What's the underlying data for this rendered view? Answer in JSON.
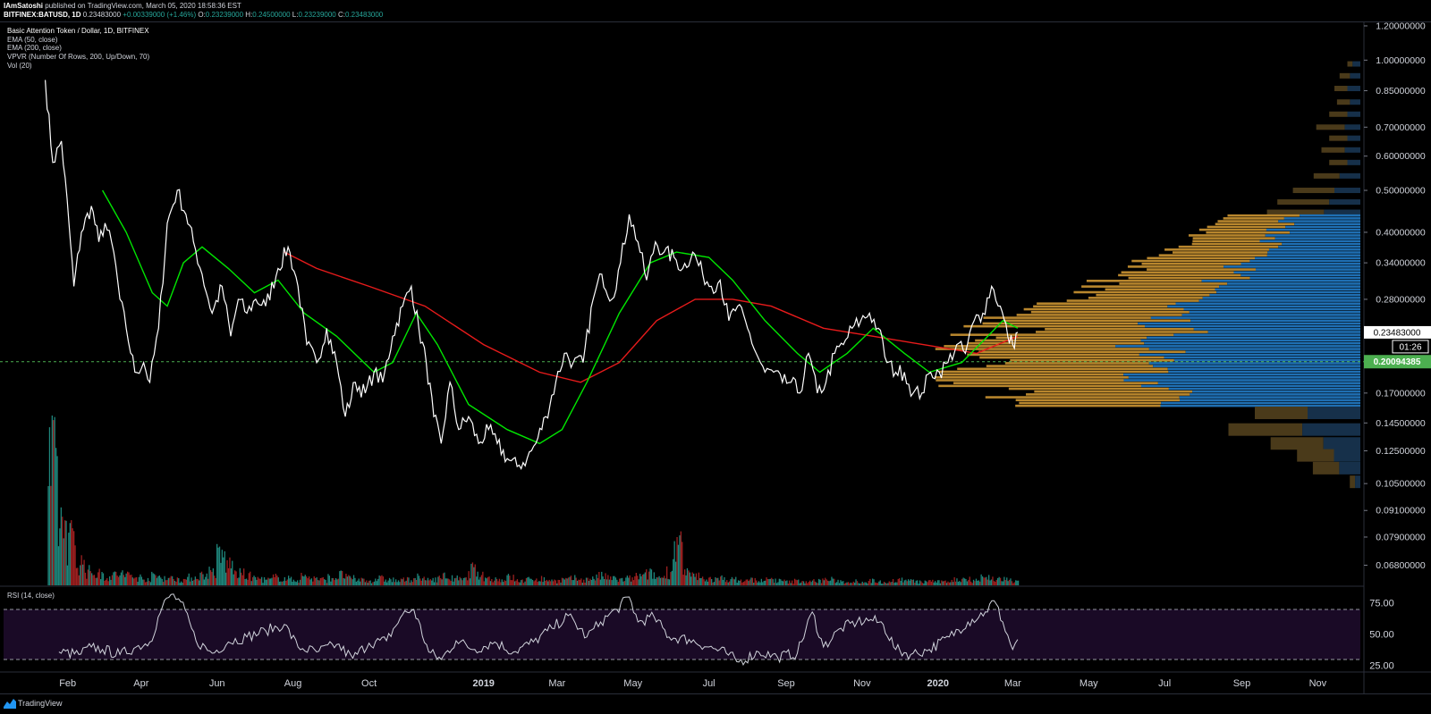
{
  "header": {
    "author": "IAmSatoshi",
    "published": "published on TradingView.com, March 05, 2020 18:58:36 EST",
    "symbol": "BITFINEX:BATUSD, 1D",
    "last": "0.23483000",
    "change": "+0.00339000 (+1.46%)",
    "o_label": "O:",
    "o_val": "0.23239000",
    "h_label": "H:",
    "h_val": "0.24500000",
    "l_label": "L:",
    "l_val": "0.23239000",
    "c_label": "C:",
    "c_val": "0.23483000"
  },
  "legend": {
    "main": "Basic Attention Token / Dollar, 1D, BITFINEX",
    "ema50": "EMA (50, close)",
    "ema200": "EMA (200, close)",
    "vpvr": "VPVR (Number Of Rows, 200, Up/Down, 70)",
    "vol": "Vol (20)"
  },
  "rsi_label": "RSI (14, close)",
  "footer": {
    "brand": "TradingView"
  },
  "colors": {
    "price": "#ffffff",
    "ema50": "#00e600",
    "ema200": "#e81b1b",
    "vol_up": "#26a69a",
    "vol_down": "#c62828",
    "vpvr_up_va": "#b8862d",
    "vpvr_down_va": "#1f6fb3",
    "vpvr_up": "#4a3a1a",
    "vpvr_down": "#16304a",
    "rsi_bg": "#1a0a26",
    "current_price": "#ffffff",
    "poc": "#4caf50"
  },
  "chart_data": {
    "type": "line",
    "symbol": "BATUSD",
    "scale": "log",
    "x_ticks": [
      "Feb",
      "Apr",
      "Jun",
      "Aug",
      "Oct",
      "2019",
      "Mar",
      "May",
      "Jul",
      "Sep",
      "Nov",
      "2020",
      "Mar",
      "May",
      "Jul",
      "Sep",
      "Nov"
    ],
    "y_ticks": [
      "1.20000000",
      "1.00000000",
      "0.85000000",
      "0.70000000",
      "0.60000000",
      "0.50000000",
      "0.40000000",
      "0.34000000",
      "0.28000000",
      "0.17000000",
      "0.14500000",
      "0.12500000",
      "0.10500000",
      "0.09100000",
      "0.07900000",
      "0.06800000"
    ],
    "ylim": [
      0.064,
      1.21
    ],
    "current_price_label": "0.23483000",
    "countdown": "01:26",
    "poc_label": "0.20094385",
    "poc": 0.2009,
    "price_series": {
      "name": "BATUSD",
      "points": [
        [
          "2018-01-14",
          0.9
        ],
        [
          "2018-01-20",
          0.58
        ],
        [
          "2018-01-27",
          0.65
        ],
        [
          "2018-02-02",
          0.42
        ],
        [
          "2018-02-06",
          0.3
        ],
        [
          "2018-02-12",
          0.4
        ],
        [
          "2018-02-20",
          0.46
        ],
        [
          "2018-02-26",
          0.38
        ],
        [
          "2018-03-03",
          0.42
        ],
        [
          "2018-03-10",
          0.36
        ],
        [
          "2018-03-15",
          0.28
        ],
        [
          "2018-03-20",
          0.24
        ],
        [
          "2018-03-27",
          0.19
        ],
        [
          "2018-04-03",
          0.2
        ],
        [
          "2018-04-08",
          0.18
        ],
        [
          "2018-04-15",
          0.24
        ],
        [
          "2018-04-22",
          0.42
        ],
        [
          "2018-04-30",
          0.5
        ],
        [
          "2018-05-07",
          0.44
        ],
        [
          "2018-05-13",
          0.38
        ],
        [
          "2018-05-20",
          0.32
        ],
        [
          "2018-05-28",
          0.26
        ],
        [
          "2018-06-05",
          0.3
        ],
        [
          "2018-06-12",
          0.23
        ],
        [
          "2018-06-18",
          0.28
        ],
        [
          "2018-06-25",
          0.26
        ],
        [
          "2018-07-02",
          0.28
        ],
        [
          "2018-07-10",
          0.27
        ],
        [
          "2018-07-20",
          0.33
        ],
        [
          "2018-07-28",
          0.37
        ],
        [
          "2018-08-05",
          0.3
        ],
        [
          "2018-08-12",
          0.22
        ],
        [
          "2018-08-20",
          0.2
        ],
        [
          "2018-08-28",
          0.24
        ],
        [
          "2018-09-05",
          0.2
        ],
        [
          "2018-09-12",
          0.15
        ],
        [
          "2018-09-20",
          0.18
        ],
        [
          "2018-09-28",
          0.17
        ],
        [
          "2018-10-05",
          0.19
        ],
        [
          "2018-10-12",
          0.18
        ],
        [
          "2018-10-20",
          0.23
        ],
        [
          "2018-10-28",
          0.27
        ],
        [
          "2018-11-04",
          0.3
        ],
        [
          "2018-11-10",
          0.24
        ],
        [
          "2018-11-16",
          0.2
        ],
        [
          "2018-11-22",
          0.15
        ],
        [
          "2018-11-28",
          0.13
        ],
        [
          "2018-12-05",
          0.18
        ],
        [
          "2018-12-12",
          0.14
        ],
        [
          "2018-12-20",
          0.15
        ],
        [
          "2018-12-28",
          0.13
        ],
        [
          "2019-01-05",
          0.14
        ],
        [
          "2019-01-12",
          0.13
        ],
        [
          "2019-01-20",
          0.12
        ],
        [
          "2019-01-28",
          0.115
        ],
        [
          "2019-02-05",
          0.12
        ],
        [
          "2019-02-12",
          0.13
        ],
        [
          "2019-02-20",
          0.15
        ],
        [
          "2019-02-28",
          0.18
        ],
        [
          "2019-03-07",
          0.21
        ],
        [
          "2019-03-14",
          0.2
        ],
        [
          "2019-03-22",
          0.2
        ],
        [
          "2019-03-30",
          0.28
        ],
        [
          "2019-04-06",
          0.32
        ],
        [
          "2019-04-14",
          0.28
        ],
        [
          "2019-04-21",
          0.34
        ],
        [
          "2019-04-28",
          0.44
        ],
        [
          "2019-05-05",
          0.38
        ],
        [
          "2019-05-12",
          0.31
        ],
        [
          "2019-05-19",
          0.38
        ],
        [
          "2019-05-26",
          0.36
        ],
        [
          "2019-06-03",
          0.35
        ],
        [
          "2019-06-10",
          0.33
        ],
        [
          "2019-06-18",
          0.36
        ],
        [
          "2019-06-26",
          0.32
        ],
        [
          "2019-07-03",
          0.3
        ],
        [
          "2019-07-10",
          0.31
        ],
        [
          "2019-07-17",
          0.25
        ],
        [
          "2019-07-24",
          0.27
        ],
        [
          "2019-08-01",
          0.24
        ],
        [
          "2019-08-08",
          0.21
        ],
        [
          "2019-08-15",
          0.19
        ],
        [
          "2019-08-22",
          0.19
        ],
        [
          "2019-08-29",
          0.18
        ],
        [
          "2019-09-05",
          0.18
        ],
        [
          "2019-09-12",
          0.17
        ],
        [
          "2019-09-19",
          0.21
        ],
        [
          "2019-09-26",
          0.17
        ],
        [
          "2019-10-03",
          0.18
        ],
        [
          "2019-10-10",
          0.21
        ],
        [
          "2019-10-17",
          0.22
        ],
        [
          "2019-10-24",
          0.24
        ],
        [
          "2019-10-31",
          0.25
        ],
        [
          "2019-11-07",
          0.26
        ],
        [
          "2019-11-14",
          0.24
        ],
        [
          "2019-11-21",
          0.2
        ],
        [
          "2019-11-28",
          0.19
        ],
        [
          "2019-12-05",
          0.19
        ],
        [
          "2019-12-12",
          0.17
        ],
        [
          "2019-12-19",
          0.17
        ],
        [
          "2019-12-26",
          0.19
        ],
        [
          "2020-01-02",
          0.19
        ],
        [
          "2020-01-09",
          0.2
        ],
        [
          "2020-01-16",
          0.22
        ],
        [
          "2020-01-23",
          0.21
        ],
        [
          "2020-01-30",
          0.25
        ],
        [
          "2020-02-06",
          0.26
        ],
        [
          "2020-02-13",
          0.3
        ],
        [
          "2020-02-20",
          0.27
        ],
        [
          "2020-02-26",
          0.23
        ],
        [
          "2020-03-01",
          0.22
        ],
        [
          "2020-03-05",
          0.235
        ]
      ]
    },
    "ema50": {
      "name": "EMA (50, close)",
      "points": [
        [
          "2018-03-01",
          0.5
        ],
        [
          "2018-03-20",
          0.4
        ],
        [
          "2018-04-10",
          0.29
        ],
        [
          "2018-04-22",
          0.27
        ],
        [
          "2018-05-05",
          0.34
        ],
        [
          "2018-05-20",
          0.37
        ],
        [
          "2018-06-10",
          0.33
        ],
        [
          "2018-07-01",
          0.29
        ],
        [
          "2018-07-20",
          0.31
        ],
        [
          "2018-08-10",
          0.26
        ],
        [
          "2018-09-05",
          0.23
        ],
        [
          "2018-10-05",
          0.19
        ],
        [
          "2018-10-20",
          0.2
        ],
        [
          "2018-11-08",
          0.26
        ],
        [
          "2018-11-25",
          0.22
        ],
        [
          "2018-12-20",
          0.16
        ],
        [
          "2019-01-20",
          0.14
        ],
        [
          "2019-02-15",
          0.13
        ],
        [
          "2019-03-05",
          0.14
        ],
        [
          "2019-03-25",
          0.18
        ],
        [
          "2019-04-20",
          0.26
        ],
        [
          "2019-05-15",
          0.34
        ],
        [
          "2019-06-05",
          0.36
        ],
        [
          "2019-07-01",
          0.35
        ],
        [
          "2019-07-20",
          0.31
        ],
        [
          "2019-08-15",
          0.25
        ],
        [
          "2019-09-10",
          0.21
        ],
        [
          "2019-09-28",
          0.19
        ],
        [
          "2019-10-20",
          0.21
        ],
        [
          "2019-11-10",
          0.24
        ],
        [
          "2019-12-05",
          0.21
        ],
        [
          "2019-12-25",
          0.19
        ],
        [
          "2020-01-20",
          0.2
        ],
        [
          "2020-02-10",
          0.23
        ],
        [
          "2020-02-22",
          0.25
        ],
        [
          "2020-03-05",
          0.24
        ]
      ]
    },
    "ema200": {
      "name": "EMA (200, close)",
      "points": [
        [
          "2018-07-25",
          0.36
        ],
        [
          "2018-08-20",
          0.33
        ],
        [
          "2018-10-01",
          0.3
        ],
        [
          "2018-11-15",
          0.27
        ],
        [
          "2019-01-01",
          0.22
        ],
        [
          "2019-02-15",
          0.19
        ],
        [
          "2019-03-20",
          0.18
        ],
        [
          "2019-04-20",
          0.2
        ],
        [
          "2019-05-20",
          0.25
        ],
        [
          "2019-06-20",
          0.28
        ],
        [
          "2019-07-20",
          0.28
        ],
        [
          "2019-08-20",
          0.27
        ],
        [
          "2019-10-01",
          0.24
        ],
        [
          "2019-11-10",
          0.23
        ],
        [
          "2019-12-20",
          0.22
        ],
        [
          "2020-02-01",
          0.21
        ],
        [
          "2020-03-05",
          0.23
        ]
      ]
    },
    "volume": {
      "name": "Vol (20)",
      "unit": "relative",
      "bars": [
        1.0,
        0.55,
        0.4,
        0.2,
        0.12,
        0.1,
        0.08,
        0.1,
        0.09,
        0.07,
        0.06,
        0.08,
        0.07,
        0.06,
        0.05,
        0.07,
        0.09,
        0.12,
        0.25,
        0.18,
        0.1,
        0.08,
        0.06,
        0.05,
        0.07,
        0.06,
        0.05,
        0.08,
        0.06,
        0.05,
        0.07,
        0.09,
        0.06,
        0.05,
        0.04,
        0.06,
        0.05,
        0.04,
        0.05,
        0.07,
        0.05,
        0.06,
        0.08,
        0.06,
        0.05,
        0.14,
        0.08,
        0.06,
        0.05,
        0.07,
        0.04,
        0.05,
        0.06,
        0.05,
        0.04,
        0.05,
        0.06,
        0.05,
        0.07,
        0.08,
        0.06,
        0.05,
        0.06,
        0.08,
        0.1,
        0.07,
        0.12,
        0.35,
        0.1,
        0.08,
        0.06,
        0.05,
        0.06,
        0.05,
        0.04,
        0.05,
        0.04,
        0.05,
        0.04,
        0.03,
        0.04,
        0.03,
        0.04,
        0.05,
        0.04,
        0.03,
        0.04,
        0.03,
        0.04,
        0.03,
        0.04,
        0.05,
        0.04,
        0.03,
        0.04,
        0.03,
        0.04,
        0.05,
        0.06,
        0.05,
        0.07,
        0.06,
        0.05,
        0.04
      ]
    },
    "rsi": {
      "name": "RSI (14, close)",
      "y_ticks": [
        "75.00",
        "50.00",
        "25.00"
      ],
      "levels": [
        70,
        30
      ],
      "ylim": [
        20,
        85
      ],
      "points": [
        [
          "2018-01-25",
          36
        ],
        [
          "2018-02-10",
          34
        ],
        [
          "2018-02-20",
          40
        ],
        [
          "2018-03-01",
          38
        ],
        [
          "2018-03-15",
          34
        ],
        [
          "2018-03-28",
          40
        ],
        [
          "2018-04-08",
          44
        ],
        [
          "2018-04-18",
          72
        ],
        [
          "2018-04-25",
          82
        ],
        [
          "2018-05-03",
          76
        ],
        [
          "2018-05-15",
          45
        ],
        [
          "2018-05-28",
          35
        ],
        [
          "2018-06-10",
          44
        ],
        [
          "2018-06-25",
          48
        ],
        [
          "2018-07-10",
          53
        ],
        [
          "2018-07-25",
          58
        ],
        [
          "2018-08-05",
          40
        ],
        [
          "2018-08-20",
          36
        ],
        [
          "2018-09-05",
          42
        ],
        [
          "2018-09-18",
          31
        ],
        [
          "2018-10-01",
          43
        ],
        [
          "2018-10-15",
          45
        ],
        [
          "2018-10-28",
          66
        ],
        [
          "2018-11-06",
          70
        ],
        [
          "2018-11-18",
          36
        ],
        [
          "2018-11-28",
          30
        ],
        [
          "2018-12-10",
          45
        ],
        [
          "2018-12-25",
          38
        ],
        [
          "2019-01-10",
          44
        ],
        [
          "2019-01-25",
          36
        ],
        [
          "2019-02-10",
          44
        ],
        [
          "2019-02-25",
          55
        ],
        [
          "2019-03-10",
          65
        ],
        [
          "2019-03-25",
          48
        ],
        [
          "2019-04-05",
          60
        ],
        [
          "2019-04-18",
          70
        ],
        [
          "2019-04-28",
          80
        ],
        [
          "2019-05-05",
          60
        ],
        [
          "2019-05-18",
          64
        ],
        [
          "2019-05-30",
          48
        ],
        [
          "2019-06-15",
          46
        ],
        [
          "2019-07-01",
          40
        ],
        [
          "2019-07-15",
          35
        ],
        [
          "2019-07-25",
          28
        ],
        [
          "2019-08-10",
          36
        ],
        [
          "2019-08-25",
          32
        ],
        [
          "2019-09-10",
          35
        ],
        [
          "2019-09-22",
          68
        ],
        [
          "2019-10-01",
          40
        ],
        [
          "2019-10-15",
          55
        ],
        [
          "2019-10-28",
          60
        ],
        [
          "2019-11-08",
          62
        ],
        [
          "2019-11-18",
          58
        ],
        [
          "2019-11-28",
          38
        ],
        [
          "2019-12-10",
          34
        ],
        [
          "2019-12-25",
          38
        ],
        [
          "2020-01-10",
          48
        ],
        [
          "2020-01-25",
          60
        ],
        [
          "2020-02-08",
          68
        ],
        [
          "2020-02-15",
          77
        ],
        [
          "2020-02-22",
          60
        ],
        [
          "2020-03-01",
          38
        ],
        [
          "2020-03-05",
          46
        ]
      ]
    }
  }
}
